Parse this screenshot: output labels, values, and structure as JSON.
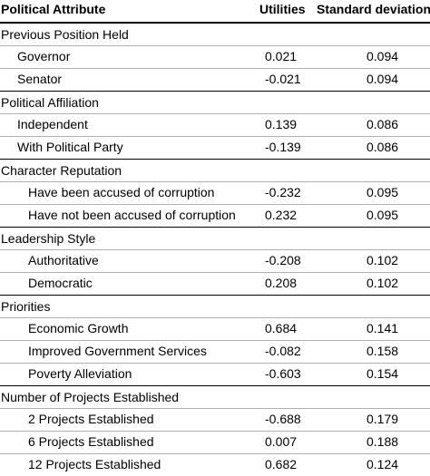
{
  "header": {
    "attribute": "Political Attribute",
    "utilities": "Utilities",
    "sd": "Standard deviation"
  },
  "sections": [
    {
      "title": "Previous Position Held",
      "rows": [
        {
          "label": "Governor",
          "utility": "0.021",
          "sd": "0.094"
        },
        {
          "label": "Senator",
          "utility": "-0.021",
          "sd": "0.094"
        }
      ]
    },
    {
      "title": "Political Affiliation",
      "rows": [
        {
          "label": "Independent",
          "utility": "0.139",
          "sd": "0.086"
        },
        {
          "label": "With Political Party",
          "utility": "-0.139",
          "sd": "0.086"
        }
      ]
    },
    {
      "title": "Character Reputation",
      "rows": [
        {
          "label": "Have been accused of corruption",
          "utility": "-0.232",
          "sd": "0.095"
        },
        {
          "label": "Have not been accused of corruption",
          "utility": "0.232",
          "sd": "0.095"
        }
      ]
    },
    {
      "title": "Leadership Style",
      "rows": [
        {
          "label": "Authoritative",
          "utility": "-0.208",
          "sd": "0.102"
        },
        {
          "label": "Democratic",
          "utility": "0.208",
          "sd": "0.102"
        }
      ]
    },
    {
      "title": "Priorities",
      "rows": [
        {
          "label": "Economic Growth",
          "utility": "0.684",
          "sd": "0.141"
        },
        {
          "label": "Improved Government Services",
          "utility": "-0.082",
          "sd": "0.158"
        },
        {
          "label": "Poverty Alleviation",
          "utility": "-0.603",
          "sd": "0.154"
        }
      ]
    },
    {
      "title": "Number of Projects Established",
      "rows": [
        {
          "label": "2 Projects Established",
          "utility": "-0.688",
          "sd": "0.179"
        },
        {
          "label": "6 Projects Established",
          "utility": "0.007",
          "sd": "0.188"
        },
        {
          "label": "12 Projects Established",
          "utility": "0.682",
          "sd": "0.124"
        }
      ]
    }
  ]
}
